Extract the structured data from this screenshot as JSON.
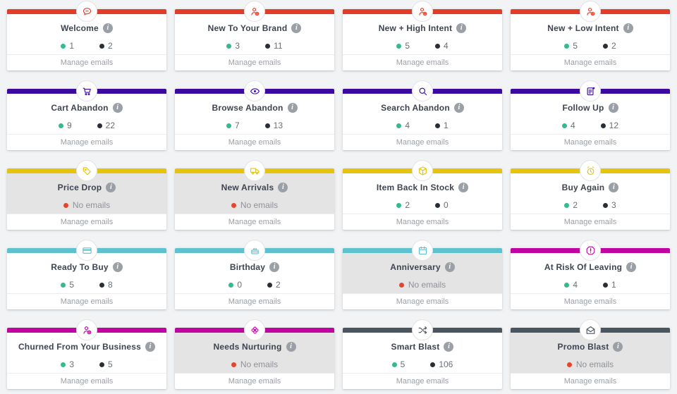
{
  "labels": {
    "manage_emails": "Manage emails",
    "no_emails": "No emails"
  },
  "colors": {
    "page_bg": "#f2f3f5",
    "red": "#e23d28",
    "indigo": "#3b0a9e",
    "yellow": "#e6c30d",
    "teal": "#5ec1ce",
    "magenta": "#c004a2",
    "slate": "#4b5560",
    "green_dot": "#36b98c",
    "dark_dot": "#2a2e35",
    "red_dot": "#e0482e"
  },
  "rows": [
    {
      "cards": [
        {
          "title": "Welcome",
          "icon": "chat-bubble-icon",
          "accent": "#e23d28",
          "state": "counts",
          "count_green": "1",
          "count_dark": "2"
        },
        {
          "title": "New To Your Brand",
          "icon": "person-plus-icon",
          "accent": "#e23d28",
          "state": "counts",
          "count_green": "3",
          "count_dark": "11"
        },
        {
          "title": "New + High Intent",
          "icon": "person-up-icon",
          "accent": "#e23d28",
          "state": "counts",
          "count_green": "5",
          "count_dark": "4"
        },
        {
          "title": "New + Low Intent",
          "icon": "person-down-icon",
          "accent": "#e23d28",
          "state": "counts",
          "count_green": "5",
          "count_dark": "2"
        }
      ]
    },
    {
      "cards": [
        {
          "title": "Cart Abandon",
          "icon": "cart-icon",
          "accent": "#3b0a9e",
          "state": "counts",
          "count_green": "9",
          "count_dark": "22"
        },
        {
          "title": "Browse Abandon",
          "icon": "eye-icon",
          "accent": "#3b0a9e",
          "state": "counts",
          "count_green": "7",
          "count_dark": "13"
        },
        {
          "title": "Search Abandon",
          "icon": "search-icon",
          "accent": "#3b0a9e",
          "state": "counts",
          "count_green": "4",
          "count_dark": "1"
        },
        {
          "title": "Follow Up",
          "icon": "doc-dot-icon",
          "accent": "#3b0a9e",
          "state": "counts",
          "count_green": "4",
          "count_dark": "12"
        }
      ]
    },
    {
      "cards": [
        {
          "title": "Price Drop",
          "icon": "tag-down-icon",
          "accent": "#e6c30d",
          "state": "empty"
        },
        {
          "title": "New Arrivals",
          "icon": "truck-icon",
          "accent": "#e6c30d",
          "state": "empty"
        },
        {
          "title": "Item Back In Stock",
          "icon": "box-icon",
          "accent": "#e6c30d",
          "state": "counts",
          "count_green": "2",
          "count_dark": "0"
        },
        {
          "title": "Buy Again",
          "icon": "alarm-icon",
          "accent": "#e6c30d",
          "state": "counts",
          "count_green": "2",
          "count_dark": "3"
        }
      ]
    },
    {
      "cards": [
        {
          "title": "Ready To Buy",
          "icon": "credit-card-icon",
          "accent": "#5ec1ce",
          "state": "counts",
          "count_green": "5",
          "count_dark": "8"
        },
        {
          "title": "Birthday",
          "icon": "cake-icon",
          "accent": "#5ec1ce",
          "state": "counts",
          "count_green": "0",
          "count_dark": "2"
        },
        {
          "title": "Anniversary",
          "icon": "calendar-icon",
          "accent": "#5ec1ce",
          "state": "empty"
        },
        {
          "title": "At Risk Of Leaving",
          "icon": "alert-octagon-icon",
          "accent": "#c004a2",
          "state": "counts",
          "count_green": "4",
          "count_dark": "1"
        }
      ]
    },
    {
      "cards": [
        {
          "title": "Churned From Your Business",
          "icon": "person-x-icon",
          "accent": "#c004a2",
          "state": "counts",
          "count_green": "3",
          "count_dark": "5"
        },
        {
          "title": "Needs Nurturing",
          "icon": "flower-icon",
          "accent": "#c004a2",
          "state": "empty"
        },
        {
          "title": "Smart Blast",
          "icon": "shuffle-icon",
          "accent": "#4b5560",
          "state": "counts",
          "count_green": "5",
          "count_dark": "106"
        },
        {
          "title": "Promo Blast",
          "icon": "envelope-open-icon",
          "accent": "#4b5560",
          "state": "empty"
        }
      ]
    }
  ]
}
